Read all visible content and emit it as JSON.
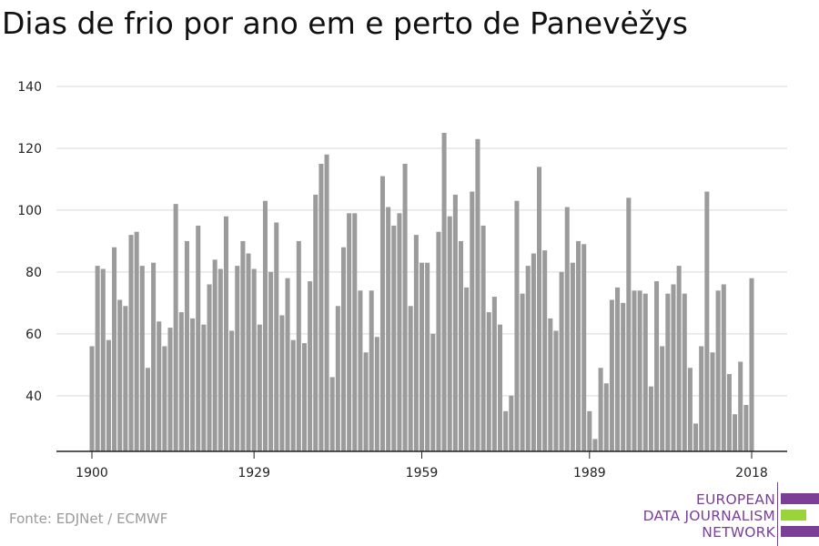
{
  "title": "Dias de frio por ano em e perto de Panevėžys",
  "source": "Fonte: EDJNet / ECMWF",
  "logo": {
    "lines": [
      "EUROPEAN",
      "DATA JOURNALISM",
      "NETWORK"
    ],
    "primary_color": "#7b3f98",
    "accent_color": "#9bd43a"
  },
  "colors": {
    "bar": "#9b9b9b",
    "grid": "#d9d9d9",
    "axis": "#222222"
  },
  "chart_data": {
    "type": "bar",
    "title": "Dias de frio por ano em e perto de Panevėžys",
    "xlabel": "",
    "ylabel": "",
    "ylim": [
      22,
      140
    ],
    "xlim": [
      1900,
      2018
    ],
    "y_ticks": [
      40,
      60,
      80,
      100,
      120,
      140
    ],
    "x_ticks": [
      1900,
      1929,
      1959,
      1989,
      2018
    ],
    "grid": true,
    "x": [
      1900,
      1901,
      1902,
      1903,
      1904,
      1905,
      1906,
      1907,
      1908,
      1909,
      1910,
      1911,
      1912,
      1913,
      1914,
      1915,
      1916,
      1917,
      1918,
      1919,
      1920,
      1921,
      1922,
      1923,
      1924,
      1925,
      1926,
      1927,
      1928,
      1929,
      1930,
      1931,
      1932,
      1933,
      1934,
      1935,
      1936,
      1937,
      1938,
      1939,
      1940,
      1941,
      1942,
      1943,
      1944,
      1945,
      1946,
      1947,
      1948,
      1949,
      1950,
      1951,
      1952,
      1953,
      1954,
      1955,
      1956,
      1957,
      1958,
      1959,
      1960,
      1961,
      1962,
      1963,
      1964,
      1965,
      1966,
      1967,
      1968,
      1969,
      1970,
      1971,
      1972,
      1973,
      1974,
      1975,
      1976,
      1977,
      1978,
      1979,
      1980,
      1981,
      1982,
      1983,
      1984,
      1985,
      1986,
      1987,
      1988,
      1989,
      1990,
      1991,
      1992,
      1993,
      1994,
      1995,
      1996,
      1997,
      1998,
      1999,
      2000,
      2001,
      2002,
      2003,
      2004,
      2005,
      2006,
      2007,
      2008,
      2009,
      2010,
      2011,
      2012,
      2013,
      2014,
      2015,
      2016,
      2017,
      2018
    ],
    "values": [
      56,
      82,
      81,
      58,
      88,
      71,
      69,
      92,
      93,
      82,
      49,
      83,
      64,
      56,
      62,
      102,
      67,
      90,
      65,
      95,
      63,
      76,
      84,
      81,
      98,
      61,
      82,
      90,
      86,
      81,
      63,
      103,
      80,
      96,
      66,
      78,
      58,
      90,
      57,
      77,
      105,
      115,
      118,
      46,
      69,
      88,
      99,
      99,
      74,
      54,
      74,
      59,
      111,
      101,
      95,
      99,
      115,
      69,
      92,
      83,
      83,
      60,
      93,
      125,
      98,
      105,
      90,
      75,
      106,
      123,
      95,
      67,
      72,
      63,
      35,
      40,
      103,
      73,
      82,
      86,
      114,
      87,
      65,
      61,
      80,
      101,
      83,
      90,
      89,
      35,
      26,
      49,
      44,
      71,
      75,
      70,
      104,
      74,
      74,
      73,
      43,
      77,
      56,
      73,
      76,
      82,
      73,
      49,
      31,
      56,
      106,
      54,
      74,
      76,
      47,
      34,
      51,
      37,
      78
    ]
  }
}
